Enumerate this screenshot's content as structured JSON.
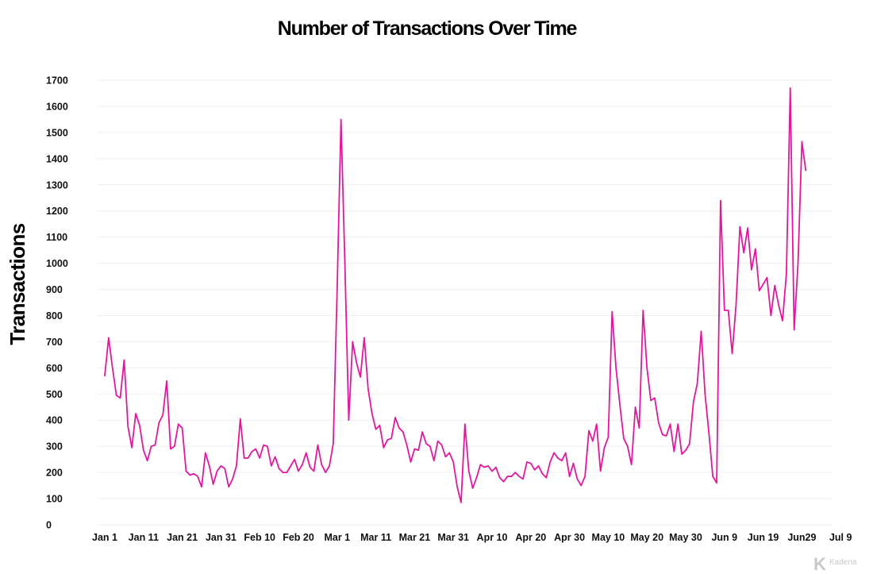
{
  "chart_data": {
    "type": "line",
    "title": "Number of Transactions Over Time",
    "xlabel": "",
    "ylabel": "Transactions",
    "ylim": [
      0,
      1700
    ],
    "yticks": [
      0,
      100,
      200,
      300,
      400,
      500,
      600,
      700,
      800,
      900,
      1000,
      1100,
      1200,
      1300,
      1400,
      1500,
      1600,
      1700
    ],
    "xrange": [
      "2020-01-01",
      "2020-07-09"
    ],
    "xticks": [
      {
        "date": "2020-01-01",
        "label": "Jan 1"
      },
      {
        "date": "2020-01-11",
        "label": "Jan 11"
      },
      {
        "date": "2020-01-21",
        "label": "Jan 21"
      },
      {
        "date": "2020-01-31",
        "label": "Jan 31"
      },
      {
        "date": "2020-02-10",
        "label": "Feb 10"
      },
      {
        "date": "2020-02-20",
        "label": "Feb 20"
      },
      {
        "date": "2020-03-01",
        "label": "Mar 1"
      },
      {
        "date": "2020-03-11",
        "label": "Mar 11"
      },
      {
        "date": "2020-03-21",
        "label": "Mar 21"
      },
      {
        "date": "2020-03-31",
        "label": "Mar 31"
      },
      {
        "date": "2020-04-10",
        "label": "Apr 10"
      },
      {
        "date": "2020-04-20",
        "label": "Apr 20"
      },
      {
        "date": "2020-04-30",
        "label": "Apr 30"
      },
      {
        "date": "2020-05-10",
        "label": "May 10"
      },
      {
        "date": "2020-05-20",
        "label": "May 20"
      },
      {
        "date": "2020-05-30",
        "label": "May 30"
      },
      {
        "date": "2020-06-09",
        "label": "Jun 9"
      },
      {
        "date": "2020-06-19",
        "label": "Jun 19"
      },
      {
        "date": "2020-06-29",
        "label": "Jun29"
      },
      {
        "date": "2020-07-09",
        "label": "Jul 9"
      }
    ],
    "grid": true,
    "series": [
      {
        "color": "#e8149e",
        "points": [
          [
            "2020-01-01",
            570
          ],
          [
            "2020-01-02",
            715
          ],
          [
            "2020-01-03",
            600
          ],
          [
            "2020-01-04",
            495
          ],
          [
            "2020-01-05",
            485
          ],
          [
            "2020-01-06",
            630
          ],
          [
            "2020-01-07",
            375
          ],
          [
            "2020-01-08",
            295
          ],
          [
            "2020-01-09",
            425
          ],
          [
            "2020-01-10",
            380
          ],
          [
            "2020-01-11",
            285
          ],
          [
            "2020-01-12",
            245
          ],
          [
            "2020-01-13",
            300
          ],
          [
            "2020-01-14",
            305
          ],
          [
            "2020-01-15",
            390
          ],
          [
            "2020-01-16",
            420
          ],
          [
            "2020-01-17",
            550
          ],
          [
            "2020-01-18",
            290
          ],
          [
            "2020-01-19",
            300
          ],
          [
            "2020-01-20",
            385
          ],
          [
            "2020-01-21",
            370
          ],
          [
            "2020-01-22",
            205
          ],
          [
            "2020-01-23",
            190
          ],
          [
            "2020-01-24",
            195
          ],
          [
            "2020-01-25",
            185
          ],
          [
            "2020-01-26",
            145
          ],
          [
            "2020-01-27",
            275
          ],
          [
            "2020-01-28",
            225
          ],
          [
            "2020-01-29",
            155
          ],
          [
            "2020-01-30",
            205
          ],
          [
            "2020-01-31",
            225
          ],
          [
            "2020-02-01",
            215
          ],
          [
            "2020-02-02",
            145
          ],
          [
            "2020-02-03",
            175
          ],
          [
            "2020-02-04",
            225
          ],
          [
            "2020-02-05",
            405
          ],
          [
            "2020-02-06",
            255
          ],
          [
            "2020-02-07",
            255
          ],
          [
            "2020-02-08",
            280
          ],
          [
            "2020-02-09",
            290
          ],
          [
            "2020-02-10",
            255
          ],
          [
            "2020-02-11",
            305
          ],
          [
            "2020-02-12",
            300
          ],
          [
            "2020-02-13",
            225
          ],
          [
            "2020-02-14",
            260
          ],
          [
            "2020-02-15",
            215
          ],
          [
            "2020-02-16",
            200
          ],
          [
            "2020-02-17",
            200
          ],
          [
            "2020-02-18",
            225
          ],
          [
            "2020-02-19",
            250
          ],
          [
            "2020-02-20",
            205
          ],
          [
            "2020-02-21",
            230
          ],
          [
            "2020-02-22",
            275
          ],
          [
            "2020-02-23",
            220
          ],
          [
            "2020-02-24",
            205
          ],
          [
            "2020-02-25",
            305
          ],
          [
            "2020-02-26",
            230
          ],
          [
            "2020-02-27",
            200
          ],
          [
            "2020-02-28",
            225
          ],
          [
            "2020-02-29",
            310
          ],
          [
            "2020-03-01",
            900
          ],
          [
            "2020-03-02",
            1550
          ],
          [
            "2020-03-03",
            1000
          ],
          [
            "2020-03-04",
            400
          ],
          [
            "2020-03-05",
            700
          ],
          [
            "2020-03-06",
            620
          ],
          [
            "2020-03-07",
            565
          ],
          [
            "2020-03-08",
            715
          ],
          [
            "2020-03-09",
            520
          ],
          [
            "2020-03-10",
            425
          ],
          [
            "2020-03-11",
            365
          ],
          [
            "2020-03-12",
            380
          ],
          [
            "2020-03-13",
            295
          ],
          [
            "2020-03-14",
            325
          ],
          [
            "2020-03-15",
            330
          ],
          [
            "2020-03-16",
            410
          ],
          [
            "2020-03-17",
            370
          ],
          [
            "2020-03-18",
            355
          ],
          [
            "2020-03-19",
            305
          ],
          [
            "2020-03-20",
            240
          ],
          [
            "2020-03-21",
            290
          ],
          [
            "2020-03-22",
            285
          ],
          [
            "2020-03-23",
            355
          ],
          [
            "2020-03-24",
            310
          ],
          [
            "2020-03-25",
            300
          ],
          [
            "2020-03-26",
            245
          ],
          [
            "2020-03-27",
            320
          ],
          [
            "2020-03-28",
            305
          ],
          [
            "2020-03-29",
            260
          ],
          [
            "2020-03-30",
            275
          ],
          [
            "2020-03-31",
            240
          ],
          [
            "2020-04-01",
            145
          ],
          [
            "2020-04-02",
            85
          ],
          [
            "2020-04-03",
            385
          ],
          [
            "2020-04-04",
            205
          ],
          [
            "2020-04-05",
            140
          ],
          [
            "2020-04-06",
            180
          ],
          [
            "2020-04-07",
            230
          ],
          [
            "2020-04-08",
            220
          ],
          [
            "2020-04-09",
            225
          ],
          [
            "2020-04-10",
            205
          ],
          [
            "2020-04-11",
            220
          ],
          [
            "2020-04-12",
            180
          ],
          [
            "2020-04-13",
            165
          ],
          [
            "2020-04-14",
            185
          ],
          [
            "2020-04-15",
            185
          ],
          [
            "2020-04-16",
            200
          ],
          [
            "2020-04-17",
            185
          ],
          [
            "2020-04-18",
            175
          ],
          [
            "2020-04-19",
            240
          ],
          [
            "2020-04-20",
            235
          ],
          [
            "2020-04-21",
            210
          ],
          [
            "2020-04-22",
            225
          ],
          [
            "2020-04-23",
            195
          ],
          [
            "2020-04-24",
            180
          ],
          [
            "2020-04-25",
            240
          ],
          [
            "2020-04-26",
            275
          ],
          [
            "2020-04-27",
            255
          ],
          [
            "2020-04-28",
            245
          ],
          [
            "2020-04-29",
            275
          ],
          [
            "2020-04-30",
            185
          ],
          [
            "2020-05-01",
            235
          ],
          [
            "2020-05-02",
            175
          ],
          [
            "2020-05-03",
            150
          ],
          [
            "2020-05-04",
            185
          ],
          [
            "2020-05-05",
            360
          ],
          [
            "2020-05-06",
            320
          ],
          [
            "2020-05-07",
            385
          ],
          [
            "2020-05-08",
            205
          ],
          [
            "2020-05-09",
            295
          ],
          [
            "2020-05-10",
            335
          ],
          [
            "2020-05-11",
            815
          ],
          [
            "2020-05-12",
            600
          ],
          [
            "2020-05-13",
            460
          ],
          [
            "2020-05-14",
            330
          ],
          [
            "2020-05-15",
            300
          ],
          [
            "2020-05-16",
            230
          ],
          [
            "2020-05-17",
            450
          ],
          [
            "2020-05-18",
            370
          ],
          [
            "2020-05-19",
            820
          ],
          [
            "2020-05-20",
            600
          ],
          [
            "2020-05-21",
            475
          ],
          [
            "2020-05-22",
            485
          ],
          [
            "2020-05-23",
            390
          ],
          [
            "2020-05-24",
            345
          ],
          [
            "2020-05-25",
            340
          ],
          [
            "2020-05-26",
            385
          ],
          [
            "2020-05-27",
            280
          ],
          [
            "2020-05-28",
            385
          ],
          [
            "2020-05-29",
            270
          ],
          [
            "2020-05-30",
            285
          ],
          [
            "2020-05-31",
            310
          ],
          [
            "2020-06-01",
            470
          ],
          [
            "2020-06-02",
            540
          ],
          [
            "2020-06-03",
            740
          ],
          [
            "2020-06-04",
            500
          ],
          [
            "2020-06-05",
            350
          ],
          [
            "2020-06-06",
            185
          ],
          [
            "2020-06-07",
            160
          ],
          [
            "2020-06-08",
            1240
          ],
          [
            "2020-06-09",
            820
          ],
          [
            "2020-06-10",
            820
          ],
          [
            "2020-06-11",
            655
          ],
          [
            "2020-06-12",
            840
          ],
          [
            "2020-06-13",
            1140
          ],
          [
            "2020-06-14",
            1040
          ],
          [
            "2020-06-15",
            1135
          ],
          [
            "2020-06-16",
            975
          ],
          [
            "2020-06-17",
            1055
          ],
          [
            "2020-06-18",
            895
          ],
          [
            "2020-06-19",
            920
          ],
          [
            "2020-06-20",
            945
          ],
          [
            "2020-06-21",
            800
          ],
          [
            "2020-06-22",
            915
          ],
          [
            "2020-06-23",
            840
          ],
          [
            "2020-06-24",
            780
          ],
          [
            "2020-06-25",
            960
          ],
          [
            "2020-06-26",
            1670
          ],
          [
            "2020-06-27",
            745
          ],
          [
            "2020-06-28",
            1000
          ],
          [
            "2020-06-29",
            1465
          ],
          [
            "2020-06-30",
            1355
          ]
        ]
      }
    ],
    "watermark": "Kadena",
    "watermark_mark": "K"
  }
}
